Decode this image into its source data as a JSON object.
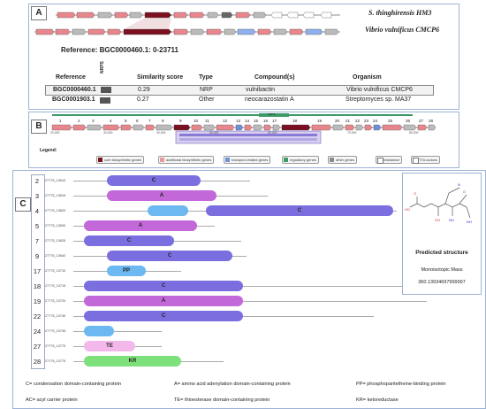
{
  "panel_a": {
    "label": "A",
    "track1_name": "S. thinghirensis HM3",
    "track2_name": "Vibrio vulnificus CMCP6",
    "reference_text": "Reference: BGC0000460.1: 0-23711",
    "nrps_tag": "NRPS",
    "headers": [
      "Reference",
      "Similarity score",
      "Type",
      "Compound(s)",
      "Organism"
    ],
    "rows": [
      {
        "ref": "BGC0000460.1",
        "score": "0.29",
        "type": "NRP",
        "compound": "vulnibactin",
        "organism": "Vibrio vulnificus CMCP6"
      },
      {
        "ref": "BGC0001903.1",
        "score": "0.27",
        "type": "Other",
        "compound": "neocarazostatin A",
        "organism": "Streptomyces sp. MA37"
      }
    ]
  },
  "panel_b": {
    "label": "B",
    "nrps_tag": "NRPS",
    "gene_numbers": [
      "1",
      "2",
      "3",
      "4",
      "5",
      "6",
      "7",
      "8",
      "9",
      "10",
      "11",
      "12",
      "13",
      "14",
      "15",
      "16",
      "17",
      "18",
      "19",
      "20",
      "21",
      "22",
      "23",
      "24",
      "25",
      "26",
      "27",
      "28"
    ],
    "scale_ticks": [
      "20,000",
      "30,000",
      "40,000",
      "50,000",
      "60,000",
      "70,000",
      "80,000"
    ],
    "legend_title": "Legend:",
    "legend": [
      {
        "label": "core biosynthetic genes",
        "color": "#7a1020"
      },
      {
        "label": "additional biosynthetic genes",
        "color": "#e89aa2"
      },
      {
        "label": "transport-related genes",
        "color": "#6f8fd6"
      },
      {
        "label": "regulatory genes",
        "color": "#3c9a66"
      },
      {
        "label": "other genes",
        "color": "#8a8a8a"
      },
      {
        "label": "resistance",
        "color": "#ffffff"
      },
      {
        "label": "TTA codons",
        "color": "#ffffff"
      }
    ]
  },
  "panel_c": {
    "label": "C",
    "rows": [
      {
        "num": "2",
        "id": "27775_13610",
        "domains": [
          {
            "text": "C",
            "color": "#7b6fe0"
          }
        ]
      },
      {
        "num": "3",
        "id": "27775_13615",
        "domains": [
          {
            "text": "A",
            "color": "#c268d8"
          }
        ]
      },
      {
        "num": "4",
        "id": "27775_13620",
        "domains": [
          {
            "text": "",
            "color": "#6cb8f0"
          },
          {
            "text": "C",
            "color": "#7b6fe0"
          }
        ]
      },
      {
        "num": "5",
        "id": "27775_13630",
        "domains": [
          {
            "text": "A",
            "color": "#c268d8"
          }
        ]
      },
      {
        "num": "7",
        "id": "27775_13625",
        "domains": [
          {
            "text": "C",
            "color": "#7b6fe0"
          }
        ]
      },
      {
        "num": "9",
        "id": "27775_13640",
        "domains": [
          {
            "text": "C",
            "color": "#7b6fe0"
          }
        ]
      },
      {
        "num": "17",
        "id": "27775_13710",
        "domains": [
          {
            "text": "PP",
            "color": "#6cb8f0"
          }
        ]
      },
      {
        "num": "18",
        "id": "27775_13715",
        "domains": [
          {
            "text": "C",
            "color": "#7b6fe0"
          }
        ]
      },
      {
        "num": "19",
        "id": "27775_13720",
        "domains": [
          {
            "text": "A",
            "color": "#c268d8"
          }
        ]
      },
      {
        "num": "22",
        "id": "27775_13740",
        "domains": [
          {
            "text": "C",
            "color": "#7b6fe0"
          }
        ]
      },
      {
        "num": "24",
        "id": "27775_13745",
        "domains": [
          {
            "text": "",
            "color": "#6cb8f0"
          }
        ]
      },
      {
        "num": "27",
        "id": "27775_13770",
        "domains": [
          {
            "text": "TE",
            "color": "#f3b8ea"
          }
        ]
      },
      {
        "num": "28",
        "id": "27775_13775",
        "domains": [
          {
            "text": "KR",
            "color": "#7de07a"
          }
        ]
      }
    ],
    "structure_title": "Predicted structure",
    "mass_label": "Monoisotopic Mass",
    "mass_value": "360.13934697999997",
    "definitions": [
      "C= condensation domain-containing protein",
      "A= amino acid adenylation domain-containing protein",
      "PP= phosphopantetheine-binding  protein",
      "AC= acyl carrier protein",
      "TE= thioesterase domain-containing protein",
      "KR= ketoreductase"
    ]
  }
}
